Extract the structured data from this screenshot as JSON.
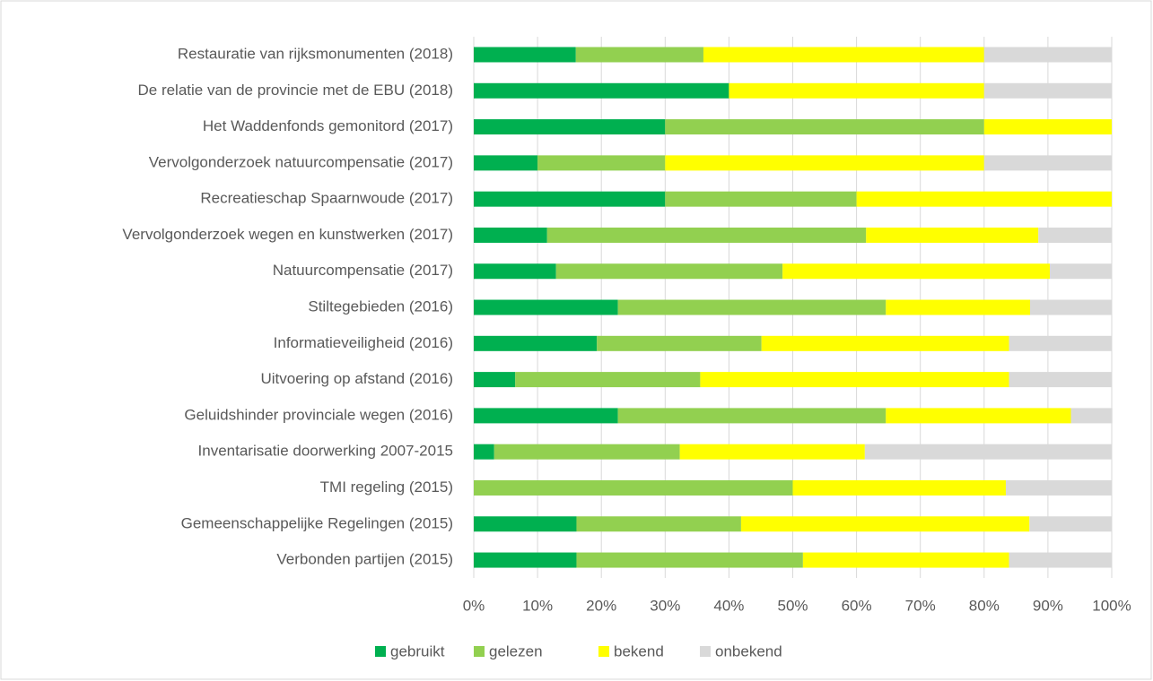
{
  "chart_data": {
    "type": "stacked-bar-horizontal",
    "categories": [
      "Restauratie van rijksmonumenten (2018)",
      "De relatie van de provincie met de EBU (2018)",
      "Het Waddenfonds gemonitord  (2017)",
      "Vervolgonderzoek natuurcompensatie (2017)",
      "Recreatieschap Spaarnwoude (2017)",
      "Vervolgonderzoek wegen en kunstwerken (2017)",
      "Natuurcompensatie (2017)",
      "Stiltegebieden (2016)",
      "Informatieveiligheid (2016)",
      "Uitvoering op afstand (2016)",
      "Geluidshinder provinciale wegen (2016)",
      "Inventarisatie doorwerking 2007-2015",
      "TMI regeling (2015)",
      "Gemeenschappelijke Regelingen (2015)",
      "Verbonden partijen (2015)"
    ],
    "series": [
      {
        "name": "gebruikt",
        "color": "#00b050",
        "values": [
          16,
          40,
          30,
          10,
          30,
          11.5,
          12.9,
          22.6,
          19.3,
          6.5,
          22.6,
          3.2,
          0,
          16.1,
          16.1
        ]
      },
      {
        "name": "gelezen",
        "color": "#92d050",
        "values": [
          20,
          0,
          50,
          20,
          30,
          50,
          35.5,
          42,
          25.8,
          29,
          42,
          29.1,
          50,
          25.8,
          35.5
        ]
      },
      {
        "name": "bekend",
        "color": "#ffff00",
        "values": [
          44,
          40,
          20,
          50,
          40,
          27,
          41.9,
          22.6,
          38.8,
          48.4,
          29,
          29,
          33.4,
          45.2,
          32.3
        ]
      },
      {
        "name": "onbekend",
        "color": "#d9d9d9",
        "values": [
          20,
          20,
          0,
          20,
          0,
          11.5,
          9.7,
          12.8,
          16.1,
          16.1,
          6.5,
          38.7,
          16.6,
          12.9,
          16.1
        ]
      }
    ],
    "xlim": [
      0,
      100
    ],
    "xticks": [
      {
        "value": 0,
        "label": "0%"
      },
      {
        "value": 10,
        "label": "10%"
      },
      {
        "value": 20,
        "label": "20%"
      },
      {
        "value": 30,
        "label": "30%"
      },
      {
        "value": 40,
        "label": "40%"
      },
      {
        "value": 50,
        "label": "50%"
      },
      {
        "value": 60,
        "label": "60%"
      },
      {
        "value": 70,
        "label": "70%"
      },
      {
        "value": 80,
        "label": "80%"
      },
      {
        "value": 90,
        "label": "90%"
      },
      {
        "value": 100,
        "label": "100%"
      }
    ],
    "grid": true,
    "legend": "bottom"
  }
}
